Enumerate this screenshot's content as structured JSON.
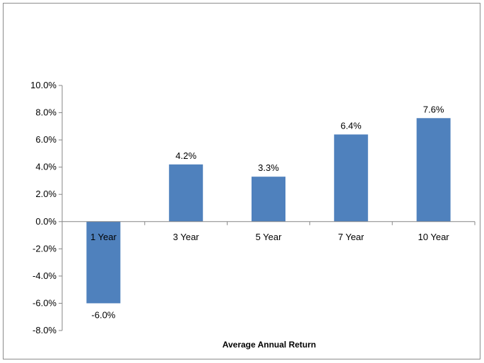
{
  "chart_data": {
    "type": "bar",
    "categories": [
      "1 Year",
      "3 Year",
      "5 Year",
      "7 Year",
      "10 Year"
    ],
    "values": [
      -6.0,
      4.2,
      3.3,
      6.4,
      7.6
    ],
    "data_labels": [
      "-6.0%",
      "4.2%",
      "3.3%",
      "6.4%",
      "7.6%"
    ],
    "title": "",
    "xlabel": "Average Annual Return",
    "ylabel": "",
    "ylim": [
      -8,
      10
    ],
    "yticks": [
      10,
      8,
      6,
      4,
      2,
      0,
      -2,
      -4,
      -6,
      -8
    ],
    "ytick_labels": [
      "10.0%",
      "8.0%",
      "6.0%",
      "4.0%",
      "2.0%",
      "0.0%",
      "-2.0%",
      "-4.0%",
      "-6.0%",
      "-8.0%"
    ],
    "grid": false,
    "legend": "none",
    "bar_color": "#4f81bd",
    "axis_color": "#868686"
  }
}
